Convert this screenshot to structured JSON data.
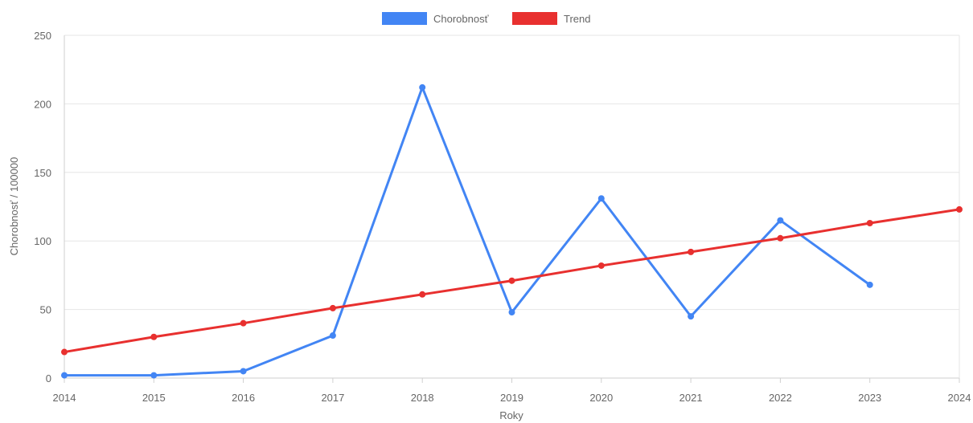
{
  "colors": {
    "chorobnost": "#4285f4",
    "trend": "#e8302f",
    "grid": "#e6e6e6",
    "text": "#666666"
  },
  "chart_data": {
    "type": "line",
    "title": "",
    "xlabel": "Roky",
    "ylabel": "Chorobnosť / 100000",
    "x": [
      "2014",
      "2015",
      "2016",
      "2017",
      "2018",
      "2019",
      "2020",
      "2021",
      "2022",
      "2023",
      "2024"
    ],
    "xlim": [
      2014,
      2024
    ],
    "ylim": [
      0,
      250
    ],
    "yticks": [
      "0",
      "50",
      "100",
      "150",
      "200",
      "250"
    ],
    "grid": true,
    "legend_position": "top-center",
    "series": [
      {
        "name": "Chorobnosť",
        "color": "#4285f4",
        "values": [
          2,
          2,
          5,
          31,
          212,
          48,
          131,
          45,
          115,
          68,
          null
        ]
      },
      {
        "name": "Trend",
        "color": "#e8302f",
        "values": [
          19,
          30,
          40,
          51,
          61,
          71,
          82,
          92,
          102,
          113,
          123
        ]
      }
    ]
  }
}
